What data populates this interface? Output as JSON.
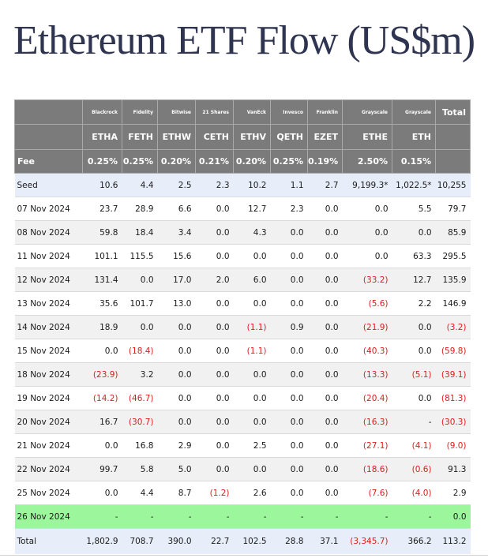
{
  "title": "Ethereum ETF Flow (US$m)",
  "header": {
    "issuers": [
      "",
      "Blackrock",
      "Fidelity",
      "Bitwise",
      "21 Shares",
      "VanEck",
      "Invesco",
      "Franklin",
      "Grayscale",
      "Grayscale",
      "Total"
    ],
    "tickers": [
      "",
      "ETHA",
      "FETH",
      "ETHW",
      "CETH",
      "ETHV",
      "QETH",
      "EZET",
      "ETHE",
      "ETH",
      ""
    ],
    "fees": [
      "Fee",
      "0.25%",
      "0.25%",
      "0.20%",
      "0.21%",
      "0.20%",
      "0.25%",
      "0.19%",
      "2.50%",
      "0.15%",
      ""
    ]
  },
  "rows": [
    {
      "label": "Seed",
      "cells": [
        "10.6",
        "4.4",
        "2.5",
        "2.3",
        "10.2",
        "1.1",
        "2.7",
        "9,199.3*",
        "1,022.5*",
        "10,255"
      ]
    },
    {
      "label": "07 Nov 2024",
      "cells": [
        "23.7",
        "28.9",
        "6.6",
        "0.0",
        "12.7",
        "2.3",
        "0.0",
        "0.0",
        "5.5",
        "79.7"
      ]
    },
    {
      "label": "08 Nov 2024",
      "cells": [
        "59.8",
        "18.4",
        "3.4",
        "0.0",
        "4.3",
        "0.0",
        "0.0",
        "0.0",
        "0.0",
        "85.9"
      ]
    },
    {
      "label": "11 Nov 2024",
      "cells": [
        "101.1",
        "115.5",
        "15.6",
        "0.0",
        "0.0",
        "0.0",
        "0.0",
        "0.0",
        "63.3",
        "295.5"
      ]
    },
    {
      "label": "12 Nov 2024",
      "cells": [
        "131.4",
        "0.0",
        "17.0",
        "2.0",
        "6.0",
        "0.0",
        "0.0",
        "(33.2)",
        "12.7",
        "135.9"
      ]
    },
    {
      "label": "13 Nov 2024",
      "cells": [
        "35.6",
        "101.7",
        "13.0",
        "0.0",
        "0.0",
        "0.0",
        "0.0",
        "(5.6)",
        "2.2",
        "146.9"
      ]
    },
    {
      "label": "14 Nov 2024",
      "cells": [
        "18.9",
        "0.0",
        "0.0",
        "0.0",
        "(1.1)",
        "0.9",
        "0.0",
        "(21.9)",
        "0.0",
        "(3.2)"
      ]
    },
    {
      "label": "15 Nov 2024",
      "cells": [
        "0.0",
        "(18.4)",
        "0.0",
        "0.0",
        "(1.1)",
        "0.0",
        "0.0",
        "(40.3)",
        "0.0",
        "(59.8)"
      ]
    },
    {
      "label": "18 Nov 2024",
      "cells": [
        "(23.9)",
        "3.2",
        "0.0",
        "0.0",
        "0.0",
        "0.0",
        "0.0",
        "(13.3)",
        "(5.1)",
        "(39.1)"
      ]
    },
    {
      "label": "19 Nov 2024",
      "cells": [
        "(14.2)",
        "(46.7)",
        "0.0",
        "0.0",
        "0.0",
        "0.0",
        "0.0",
        "(20.4)",
        "0.0",
        "(81.3)"
      ]
    },
    {
      "label": "20 Nov 2024",
      "cells": [
        "16.7",
        "(30.7)",
        "0.0",
        "0.0",
        "0.0",
        "0.0",
        "0.0",
        "(16.3)",
        "-",
        "(30.3)"
      ]
    },
    {
      "label": "21 Nov 2024",
      "cells": [
        "0.0",
        "16.8",
        "2.9",
        "0.0",
        "2.5",
        "0.0",
        "0.0",
        "(27.1)",
        "(4.1)",
        "(9.0)"
      ]
    },
    {
      "label": "22 Nov 2024",
      "cells": [
        "99.7",
        "5.8",
        "5.0",
        "0.0",
        "0.0",
        "0.0",
        "0.0",
        "(18.6)",
        "(0.6)",
        "91.3"
      ]
    },
    {
      "label": "25 Nov 2024",
      "cells": [
        "0.0",
        "4.4",
        "8.7",
        "(1.2)",
        "2.6",
        "0.0",
        "0.0",
        "(7.6)",
        "(4.0)",
        "2.9"
      ]
    },
    {
      "label": "26 Nov 2024",
      "cells": [
        "-",
        "-",
        "-",
        "-",
        "-",
        "-",
        "-",
        "-",
        "-",
        "0.0"
      ]
    },
    {
      "label": "Total",
      "cells": [
        "1,802.9",
        "708.7",
        "390.0",
        "22.7",
        "102.5",
        "28.8",
        "37.1",
        "(3,345.7)",
        "366.2",
        "113.2"
      ]
    }
  ],
  "colors": {
    "header_bg": "#7b7b7b",
    "negative": "#e01b1b",
    "highlight_row": "#9cf79c",
    "seed_total_row": "#e7eef9",
    "stripe_row": "#f1f1f1"
  }
}
